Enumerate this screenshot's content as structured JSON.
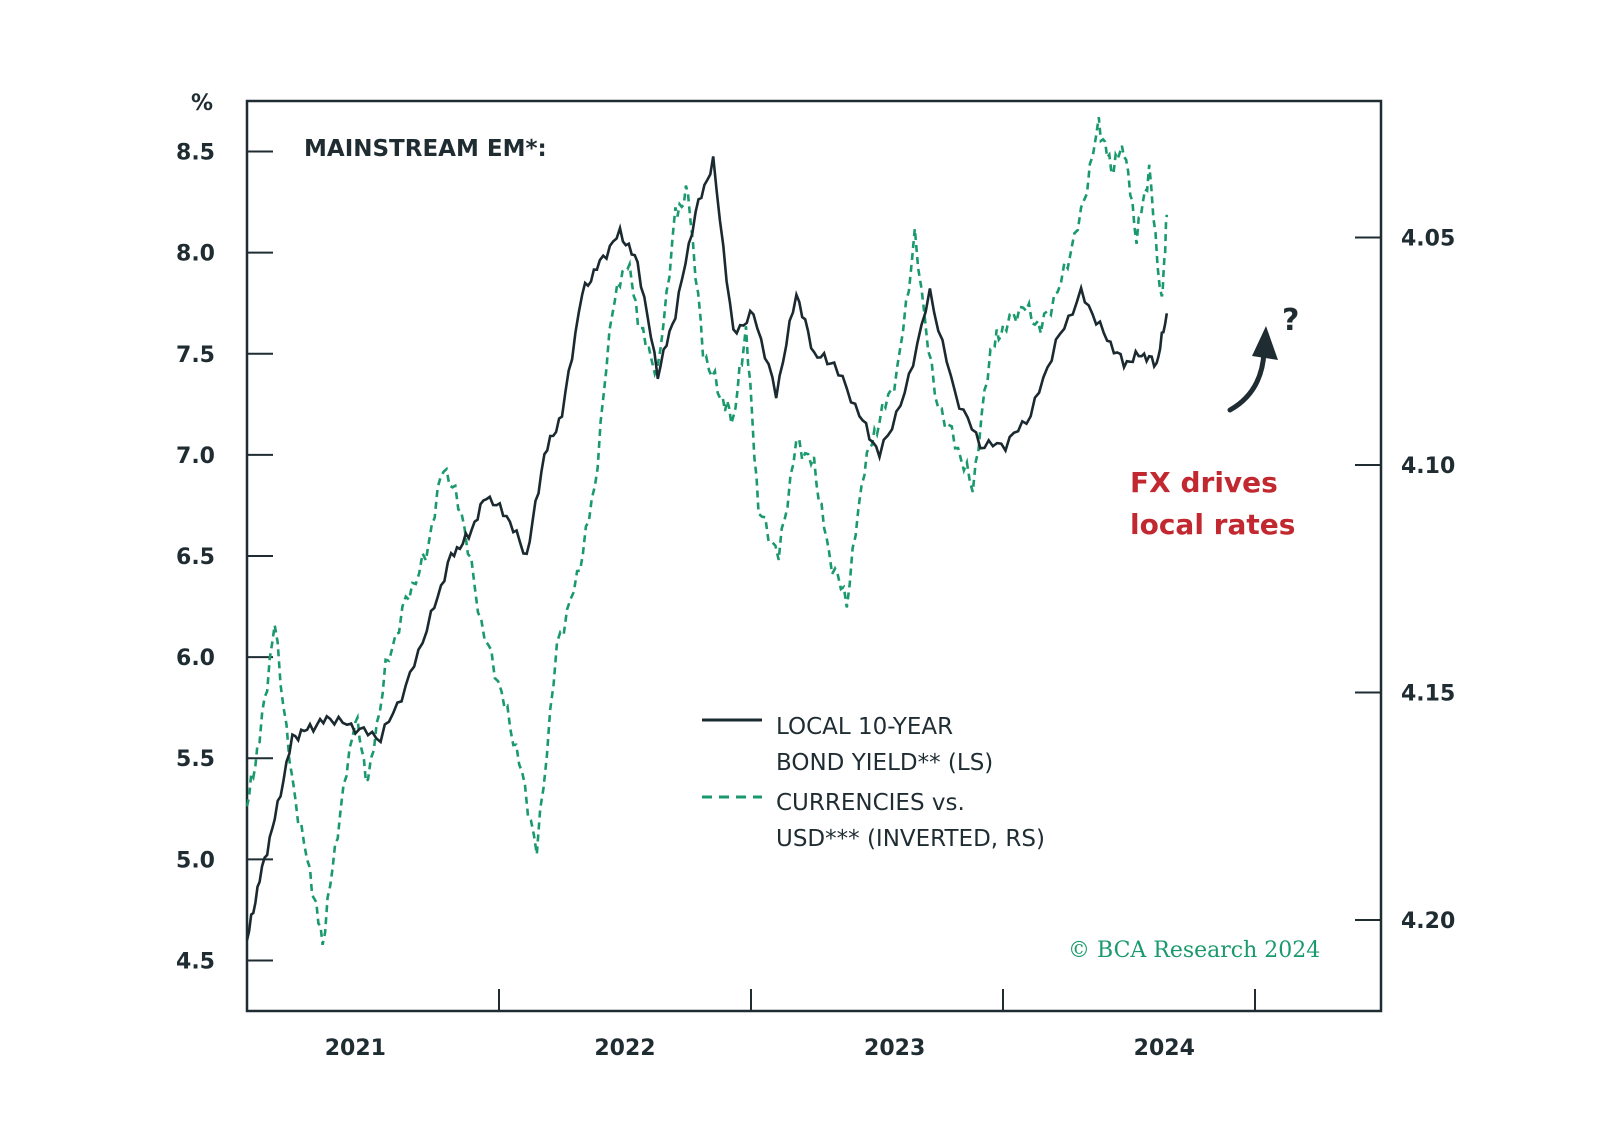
{
  "chart_data": {
    "type": "line",
    "title": "MAINSTREAM EM*:",
    "ylabel_left": "%",
    "ylim_left": [
      4.25,
      8.75
    ],
    "yticks_left": [
      "4.5",
      "5.0",
      "5.5",
      "6.0",
      "6.5",
      "7.0",
      "7.5",
      "8.0",
      "8.5"
    ],
    "ylim_right_inverted": [
      4.22,
      4.02
    ],
    "yticks_right": [
      "4.05",
      "4.10",
      "4.15",
      "4.20"
    ],
    "xlim": [
      2020.57,
      2025.07
    ],
    "x_tick_positions": [
      2021.57,
      2022.57,
      2023.57,
      2024.57
    ],
    "x_labels": [
      {
        "label": "2021",
        "x": 2021.0
      },
      {
        "label": "2022",
        "x": 2022.07
      },
      {
        "label": "2023",
        "x": 2023.14
      },
      {
        "label": "2024",
        "x": 2024.21
      }
    ],
    "legend": [
      "LOCAL 10-YEAR",
      "BOND YIELD** (LS)",
      "CURRENCIES vs.",
      "USD*** (INVERTED, RS)"
    ],
    "annotation": [
      "FX drives",
      "local rates"
    ],
    "question_mark": "?",
    "copyright": "© BCA Research 2024",
    "series": [
      {
        "name": "LOCAL 10-YEAR BOND YIELD** (LS)",
        "axis": "left",
        "color": "#1b2a30",
        "style": "solid",
        "x": [
          2020.57,
          2020.62,
          2020.68,
          2020.75,
          2020.82,
          2020.9,
          2021.0,
          2021.1,
          2021.2,
          2021.3,
          2021.38,
          2021.45,
          2021.52,
          2021.6,
          2021.68,
          2021.75,
          2021.82,
          2021.9,
          2021.97,
          2022.05,
          2022.12,
          2022.2,
          2022.27,
          2022.35,
          2022.42,
          2022.5,
          2022.58,
          2022.67,
          2022.75,
          2022.82,
          2022.9,
          2023.0,
          2023.08,
          2023.18,
          2023.28,
          2023.38,
          2023.48,
          2023.58,
          2023.68,
          2023.78,
          2023.88,
          2023.97,
          2024.05,
          2024.12,
          2024.18,
          2024.22
        ],
        "values": [
          4.6,
          4.9,
          5.2,
          5.6,
          5.65,
          5.7,
          5.65,
          5.6,
          5.85,
          6.2,
          6.5,
          6.6,
          6.8,
          6.7,
          6.5,
          7.0,
          7.2,
          7.8,
          7.95,
          8.1,
          7.95,
          7.4,
          7.7,
          8.2,
          8.45,
          7.6,
          7.7,
          7.3,
          7.8,
          7.5,
          7.45,
          7.2,
          7.0,
          7.3,
          7.8,
          7.3,
          7.05,
          7.05,
          7.2,
          7.55,
          7.8,
          7.6,
          7.45,
          7.5,
          7.45,
          7.7
        ]
      },
      {
        "name": "CURRENCIES vs. USD*** (INVERTED, RS)",
        "axis": "right",
        "color": "#1a9a6c",
        "style": "dashed",
        "x": [
          2020.57,
          2020.62,
          2020.68,
          2020.75,
          2020.82,
          2020.87,
          2020.93,
          2021.0,
          2021.05,
          2021.12,
          2021.2,
          2021.28,
          2021.35,
          2021.42,
          2021.5,
          2021.58,
          2021.65,
          2021.72,
          2021.8,
          2021.88,
          2021.95,
          2022.02,
          2022.08,
          2022.13,
          2022.2,
          2022.27,
          2022.32,
          2022.38,
          2022.45,
          2022.5,
          2022.55,
          2022.6,
          2022.68,
          2022.75,
          2022.82,
          2022.88,
          2022.95,
          2023.02,
          2023.08,
          2023.15,
          2023.22,
          2023.3,
          2023.38,
          2023.45,
          2023.52,
          2023.57,
          2023.65,
          2023.72,
          2023.8,
          2023.88,
          2023.95,
          2024.0,
          2024.05,
          2024.1,
          2024.15,
          2024.2,
          2024.22
        ],
        "values": [
          4.175,
          4.16,
          4.135,
          4.17,
          4.19,
          4.205,
          4.18,
          4.155,
          4.17,
          4.145,
          4.13,
          4.12,
          4.1,
          4.11,
          4.135,
          4.15,
          4.165,
          4.185,
          4.14,
          4.125,
          4.105,
          4.065,
          4.055,
          4.07,
          4.08,
          4.045,
          4.04,
          4.075,
          4.085,
          4.09,
          4.07,
          4.11,
          4.12,
          4.095,
          4.1,
          4.12,
          4.13,
          4.1,
          4.09,
          4.08,
          4.05,
          4.085,
          4.095,
          4.105,
          4.075,
          4.07,
          4.065,
          4.07,
          4.06,
          4.045,
          4.025,
          4.035,
          4.03,
          4.05,
          4.035,
          4.065,
          4.045
        ]
      }
    ]
  }
}
